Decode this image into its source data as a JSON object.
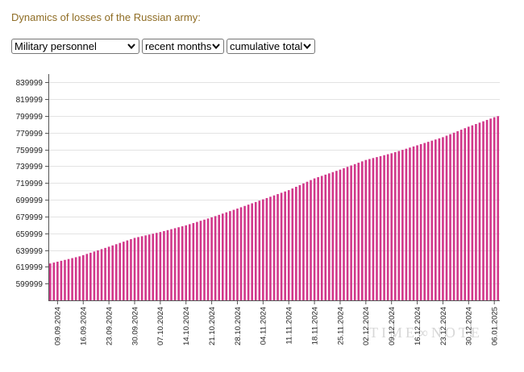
{
  "page": {
    "title": "Dynamics of losses of the Russian army:"
  },
  "filters": {
    "category": {
      "selected": "Military personnel"
    },
    "period": {
      "selected": "recent months"
    },
    "mode": {
      "selected": "cumulative total"
    }
  },
  "icons": {
    "select_chevron": "chevron-down-icon"
  },
  "colors": {
    "title": "#8f6d25",
    "bar": "#d1378a",
    "grid": "#e3e3e3",
    "axis": "#555555",
    "tick_text": "#222222"
  },
  "watermark": {
    "text": "TIME∞NOTE"
  },
  "chart_data": {
    "type": "bar",
    "x": [
      "07.09.2024",
      "08.09.2024",
      "09.09.2024",
      "10.09.2024",
      "11.09.2024",
      "12.09.2024",
      "13.09.2024",
      "14.09.2024",
      "15.09.2024",
      "16.09.2024",
      "17.09.2024",
      "18.09.2024",
      "19.09.2024",
      "20.09.2024",
      "21.09.2024",
      "22.09.2024",
      "23.09.2024",
      "24.09.2024",
      "25.09.2024",
      "26.09.2024",
      "27.09.2024",
      "28.09.2024",
      "29.09.2024",
      "30.09.2024",
      "01.10.2024",
      "02.10.2024",
      "03.10.2024",
      "04.10.2024",
      "05.10.2024",
      "06.10.2024",
      "07.10.2024",
      "08.10.2024",
      "09.10.2024",
      "10.10.2024",
      "11.10.2024",
      "12.10.2024",
      "13.10.2024",
      "14.10.2024",
      "15.10.2024",
      "16.10.2024",
      "17.10.2024",
      "18.10.2024",
      "19.10.2024",
      "20.10.2024",
      "21.10.2024",
      "22.10.2024",
      "23.10.2024",
      "24.10.2024",
      "25.10.2024",
      "26.10.2024",
      "27.10.2024",
      "28.10.2024",
      "29.10.2024",
      "30.10.2024",
      "31.10.2024",
      "01.11.2024",
      "02.11.2024",
      "03.11.2024",
      "04.11.2024",
      "05.11.2024",
      "06.11.2024",
      "07.11.2024",
      "08.11.2024",
      "09.11.2024",
      "10.11.2024",
      "11.11.2024",
      "12.11.2024",
      "13.11.2024",
      "14.11.2024",
      "15.11.2024",
      "16.11.2024",
      "17.11.2024",
      "18.11.2024",
      "19.11.2024",
      "20.11.2024",
      "21.11.2024",
      "22.11.2024",
      "23.11.2024",
      "24.11.2024",
      "25.11.2024",
      "26.11.2024",
      "27.11.2024",
      "28.11.2024",
      "29.11.2024",
      "30.11.2024",
      "01.12.2024",
      "02.12.2024",
      "03.12.2024",
      "04.12.2024",
      "05.12.2024",
      "06.12.2024",
      "07.12.2024",
      "08.12.2024",
      "09.12.2024",
      "10.12.2024",
      "11.12.2024",
      "12.12.2024",
      "13.12.2024",
      "14.12.2024",
      "15.12.2024",
      "16.12.2024",
      "17.12.2024",
      "18.12.2024",
      "19.12.2024",
      "20.12.2024",
      "21.12.2024",
      "22.12.2024",
      "23.12.2024",
      "24.12.2024",
      "25.12.2024",
      "26.12.2024",
      "27.12.2024",
      "28.12.2024",
      "29.12.2024",
      "30.12.2024",
      "31.12.2024",
      "01.01.2025",
      "02.01.2025",
      "03.01.2025",
      "04.01.2025",
      "05.01.2025",
      "06.01.2025",
      "07.01.2025"
    ],
    "series": [
      {
        "values": [
          624000,
          625060,
          626130,
          627190,
          628250,
          629310,
          630380,
          631440,
          632500,
          633940,
          635380,
          636810,
          638250,
          639690,
          641130,
          642560,
          644000,
          645500,
          647000,
          648500,
          650000,
          651500,
          653000,
          654500,
          655500,
          656500,
          657500,
          658500,
          659500,
          660500,
          661500,
          662640,
          663790,
          664930,
          666070,
          667210,
          668360,
          669500,
          670860,
          672210,
          673570,
          674930,
          676290,
          677640,
          679000,
          680500,
          682000,
          683500,
          685000,
          686500,
          688000,
          689500,
          691070,
          692640,
          694210,
          695790,
          697360,
          698930,
          700500,
          702070,
          703640,
          705210,
          706790,
          708360,
          709930,
          711500,
          713500,
          715500,
          717500,
          719500,
          721500,
          723500,
          725500,
          727000,
          728500,
          730000,
          731500,
          733000,
          734500,
          736000,
          737640,
          739290,
          740930,
          742570,
          744210,
          745860,
          747500,
          748640,
          749790,
          750930,
          752070,
          753210,
          754360,
          755500,
          756860,
          758210,
          759570,
          760930,
          762290,
          763640,
          765000,
          766390,
          767770,
          769160,
          770540,
          771930,
          773310,
          774700,
          776490,
          778270,
          780060,
          781840,
          783630,
          785410,
          787200,
          788810,
          790430,
          792040,
          793660,
          795270,
          796890,
          798500,
          799800
        ]
      }
    ],
    "xtick_labels": [
      "09.09.2024",
      "16.09.2024",
      "23.09.2024",
      "30.09.2024",
      "07.10.2024",
      "14.10.2024",
      "21.10.2024",
      "28.10.2024",
      "04.11.2024",
      "11.11.2024",
      "18.11.2024",
      "25.11.2024",
      "02.12.2024",
      "09.12.2024",
      "16.12.2024",
      "23.12.2024",
      "30.12.2024",
      "06.01.2025"
    ],
    "yticks": [
      599999,
      619999,
      639999,
      659999,
      679999,
      699999,
      719999,
      739999,
      759999,
      779999,
      799999,
      819999,
      839999
    ],
    "ylim": [
      579999,
      849999
    ],
    "grid": true,
    "legend": "none"
  }
}
